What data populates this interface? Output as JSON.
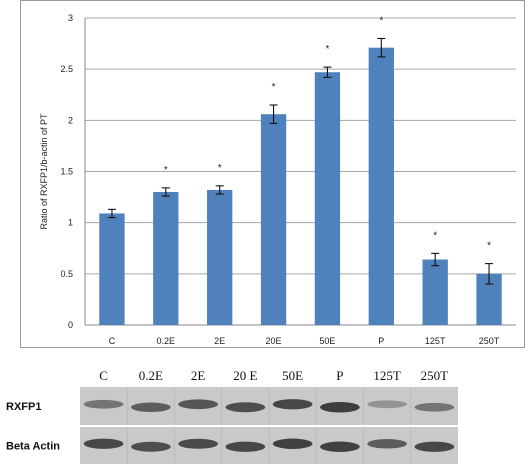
{
  "chart_data": {
    "type": "bar",
    "categories": [
      "C",
      "0.2E",
      "2E",
      "20E",
      "50E",
      "P",
      "125T",
      "250T"
    ],
    "values": [
      1.09,
      1.3,
      1.32,
      2.06,
      2.47,
      2.71,
      0.64,
      0.5
    ],
    "errors": [
      0.04,
      0.04,
      0.04,
      0.09,
      0.05,
      0.09,
      0.06,
      0.1
    ],
    "significant": [
      false,
      true,
      true,
      true,
      true,
      true,
      true,
      true
    ],
    "significance_marker": "*",
    "ylabel": "Ratio of RXFP1/b-actin of PT",
    "ylim": [
      0,
      3
    ],
    "yticks": [
      "0",
      "0.5",
      "1",
      "1.5",
      "2",
      "2.5",
      "3"
    ],
    "grid": true,
    "bar_color": "#4f81bd"
  },
  "blot": {
    "lane_labels": [
      "C",
      "0.2E",
      "2E",
      "20 E",
      "50E",
      "P",
      "125T",
      "250T"
    ],
    "rows": [
      {
        "label": "RXFP1",
        "intensity": [
          0.55,
          0.7,
          0.75,
          0.8,
          0.85,
          0.9,
          0.35,
          0.55
        ]
      },
      {
        "label": "Beta Actin",
        "intensity": [
          0.85,
          0.8,
          0.82,
          0.85,
          0.88,
          0.88,
          0.7,
          0.85
        ]
      }
    ]
  }
}
